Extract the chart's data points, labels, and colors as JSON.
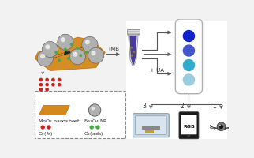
{
  "bg_color": "#f2f2f2",
  "arrow_color": "#555555",
  "nanosheet_color": "#d4891a",
  "red_dot_color": "#cc2222",
  "green_dot_color": "#44aa44",
  "tube_liquid_color": "#2a1a88",
  "strip_colors": [
    "#1122cc",
    "#4455cc",
    "#33aacc",
    "#99ccdd"
  ],
  "strip_bg": "#ffffff",
  "box_dash_color": "#888888",
  "labels": {
    "TMB": "TMB",
    "UA": "+ UA",
    "MnO2": "MnO$_2$ nanosheet",
    "Fe3O4": "Fe$_3$O$_4$ NP",
    "O2fr": "O$_2$(fr)",
    "O2ads": "O$_2$(ads)",
    "RGB": "RGB"
  },
  "figure_bg": "#f2f2f2"
}
